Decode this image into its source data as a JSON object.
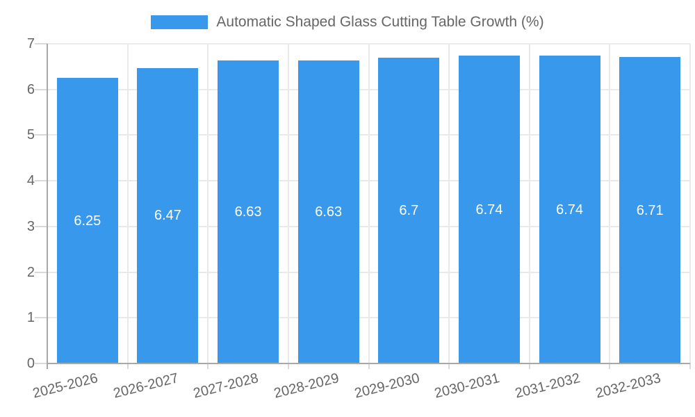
{
  "legend": {
    "label": "Automatic Shaped Glass Cutting Table Growth (%)"
  },
  "chart_data": {
    "type": "bar",
    "title": "Automatic Shaped Glass Cutting Table Growth (%)",
    "categories": [
      "2025-2026",
      "2026-2027",
      "2027-2028",
      "2028-2029",
      "2029-2030",
      "2030-2031",
      "2031-2032",
      "2032-2033"
    ],
    "values": [
      6.25,
      6.47,
      6.63,
      6.63,
      6.7,
      6.74,
      6.74,
      6.71
    ],
    "bar_labels": [
      "6.25",
      "6.47",
      "6.63",
      "6.63",
      "6.7",
      "6.74",
      "6.74",
      "6.71"
    ],
    "xlabel": "",
    "ylabel": "",
    "ylim": [
      0,
      7
    ],
    "yticks": [
      0,
      1,
      2,
      3,
      4,
      5,
      6,
      7
    ],
    "grid": true,
    "legend_position": "top-center",
    "colors": {
      "bar": "#3898ec",
      "bar_label": "#ffffff",
      "axis_text": "#666666",
      "gridline": "#e9e9e9",
      "axis_line": "#a8a8a8",
      "tick": "#d9d9d9",
      "background": "#ffffff"
    }
  }
}
